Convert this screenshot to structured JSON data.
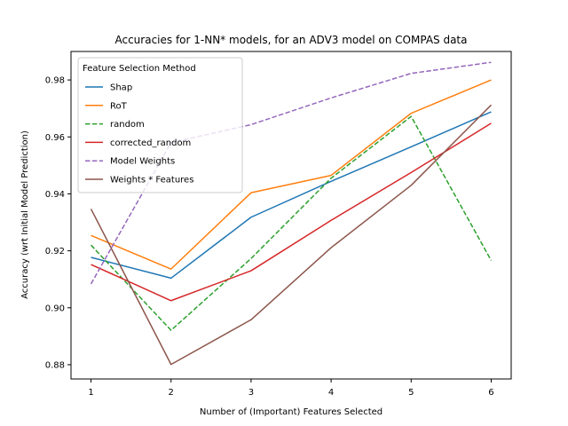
{
  "chart_data": {
    "type": "line",
    "title": "Accuracies for 1-NN* models, for an ADV3 model on COMPAS data",
    "xlabel": "Number of (Important) Features Selected",
    "ylabel": "Accuracy (wrt Initial Model Prediction)",
    "x": [
      1,
      2,
      3,
      4,
      5,
      6
    ],
    "xlim": [
      0.75,
      6.25
    ],
    "ylim": [
      0.875,
      0.99
    ],
    "xticks": [
      "1",
      "2",
      "3",
      "4",
      "5",
      "6"
    ],
    "yticks": [
      "0.88",
      "0.90",
      "0.92",
      "0.94",
      "0.96",
      "0.98"
    ],
    "ytick_values": [
      0.88,
      0.9,
      0.92,
      0.94,
      0.96,
      0.98
    ],
    "grid": false,
    "legend": {
      "title": "Feature Selection Method",
      "position": "top-left"
    },
    "series": [
      {
        "name": "Shap",
        "color": "#1f77b4",
        "dash": "solid",
        "values": [
          0.9177,
          0.9104,
          0.9318,
          0.9444,
          0.9565,
          0.9688
        ]
      },
      {
        "name": "RoT",
        "color": "#ff7f0e",
        "dash": "solid",
        "values": [
          0.9254,
          0.9136,
          0.9404,
          0.9465,
          0.9683,
          0.98
        ]
      },
      {
        "name": "random",
        "color": "#2ca02c",
        "dash": "dashed",
        "values": [
          0.922,
          0.8921,
          0.9173,
          0.9455,
          0.9672,
          0.9166
        ]
      },
      {
        "name": "corrected_random",
        "color": "#d62728",
        "dash": "solid",
        "values": [
          0.9152,
          0.9025,
          0.913,
          0.9307,
          0.9475,
          0.9648
        ]
      },
      {
        "name": "Model Weights",
        "color": "#9467bd",
        "dash": "dashed",
        "values": [
          0.9084,
          0.958,
          0.9643,
          0.9737,
          0.9823,
          0.9862
        ]
      },
      {
        "name": "Weights * Features",
        "color": "#8c564b",
        "dash": "solid",
        "values": [
          0.9347,
          0.8801,
          0.8958,
          0.9211,
          0.943,
          0.9712
        ]
      }
    ]
  }
}
